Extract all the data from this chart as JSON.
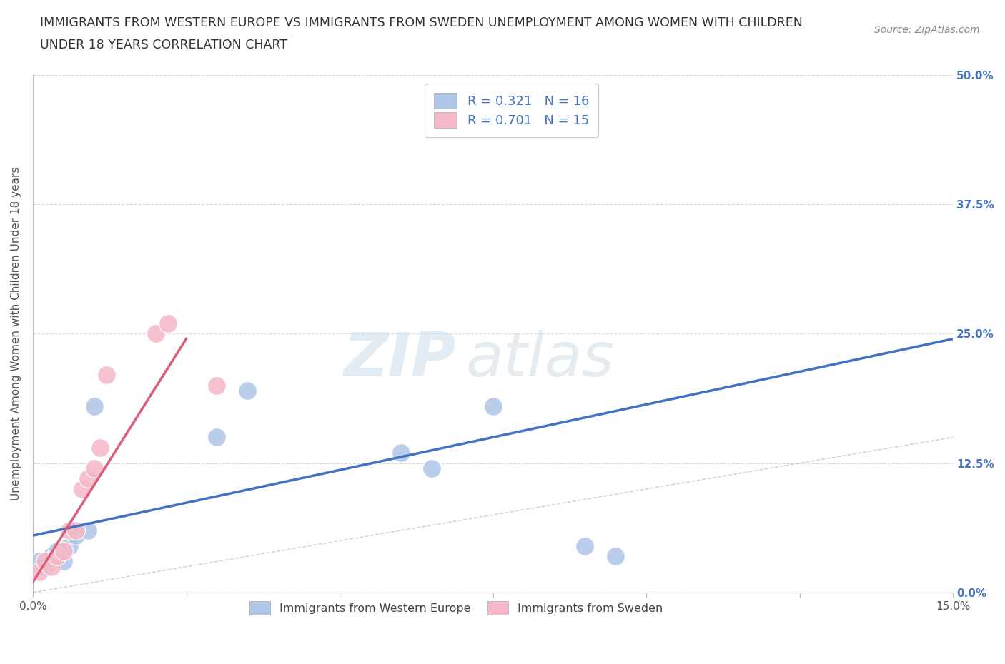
{
  "title_line1": "IMMIGRANTS FROM WESTERN EUROPE VS IMMIGRANTS FROM SWEDEN UNEMPLOYMENT AMONG WOMEN WITH CHILDREN",
  "title_line2": "UNDER 18 YEARS CORRELATION CHART",
  "source": "Source: ZipAtlas.com",
  "ylabel": "Unemployment Among Women with Children Under 18 years",
  "xlim": [
    0.0,
    0.15
  ],
  "ylim": [
    0.0,
    0.5
  ],
  "xticks": [
    0.0,
    0.025,
    0.05,
    0.075,
    0.1,
    0.125,
    0.15
  ],
  "xtick_labels": [
    "0.0%",
    "",
    "",
    "",
    "",
    "",
    "15.0%"
  ],
  "ytick_labels": [
    "0.0%",
    "12.5%",
    "25.0%",
    "37.5%",
    "50.0%"
  ],
  "yticks": [
    0.0,
    0.125,
    0.25,
    0.375,
    0.5
  ],
  "blue_color": "#aec6e8",
  "pink_color": "#f5b8c8",
  "blue_line_color": "#4472c4",
  "pink_line_color": "#d95f7a",
  "diag_color": "#d0b0b8",
  "we_x": [
    0.001,
    0.002,
    0.003,
    0.004,
    0.005,
    0.006,
    0.007,
    0.009,
    0.01,
    0.03,
    0.035,
    0.06,
    0.065,
    0.075,
    0.09,
    0.095
  ],
  "we_y": [
    0.03,
    0.025,
    0.035,
    0.04,
    0.03,
    0.045,
    0.055,
    0.06,
    0.18,
    0.15,
    0.195,
    0.135,
    0.12,
    0.18,
    0.045,
    0.035
  ],
  "sw_x": [
    0.001,
    0.002,
    0.003,
    0.004,
    0.005,
    0.006,
    0.007,
    0.008,
    0.009,
    0.01,
    0.011,
    0.012,
    0.02,
    0.022,
    0.03
  ],
  "sw_y": [
    0.02,
    0.03,
    0.025,
    0.035,
    0.04,
    0.06,
    0.06,
    0.1,
    0.11,
    0.12,
    0.14,
    0.21,
    0.25,
    0.26,
    0.2
  ]
}
